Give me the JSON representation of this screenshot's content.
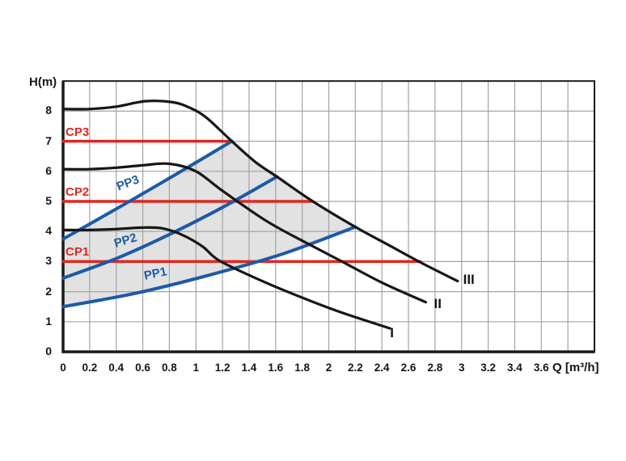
{
  "page": {
    "background": "#ffffff"
  },
  "chart_data": {
    "type": "line",
    "title": "",
    "xlabel": "Q [m³/h]",
    "ylabel": "H(m)",
    "xlim": [
      0,
      4.0
    ],
    "ylim": [
      0,
      9
    ],
    "grid": {
      "on": true,
      "x_step": 0.2,
      "y_step": 1
    },
    "legend_position": "none",
    "x_ticks": [
      {
        "value": 0,
        "label": "0"
      },
      {
        "value": 0.2,
        "label": "0.2"
      },
      {
        "value": 0.4,
        "label": "0.4"
      },
      {
        "value": 0.6,
        "label": "0.6"
      },
      {
        "value": 0.8,
        "label": "0.8"
      },
      {
        "value": 1,
        "label": "1"
      },
      {
        "value": 1.2,
        "label": "1.2"
      },
      {
        "value": 1.4,
        "label": "1.4"
      },
      {
        "value": 1.6,
        "label": "1.6"
      },
      {
        "value": 1.8,
        "label": "1.8"
      },
      {
        "value": 2,
        "label": "2"
      },
      {
        "value": 2.2,
        "label": "2.2"
      },
      {
        "value": 2.4,
        "label": "2.4"
      },
      {
        "value": 2.6,
        "label": "2.6"
      },
      {
        "value": 2.8,
        "label": "2.8"
      },
      {
        "value": 3,
        "label": "3"
      },
      {
        "value": 3.2,
        "label": "3.2"
      },
      {
        "value": 3.4,
        "label": "3.4"
      },
      {
        "value": 3.6,
        "label": "3.6"
      }
    ],
    "y_ticks": [
      {
        "value": 0,
        "label": "0"
      },
      {
        "value": 1,
        "label": "1"
      },
      {
        "value": 2,
        "label": "2"
      },
      {
        "value": 3,
        "label": "3"
      },
      {
        "value": 4,
        "label": "4"
      },
      {
        "value": 5,
        "label": "5"
      },
      {
        "value": 6,
        "label": "6"
      },
      {
        "value": 7,
        "label": "7"
      },
      {
        "value": 8,
        "label": "8"
      }
    ],
    "speed_curves": [
      {
        "name": "I",
        "label": "I",
        "color": "#161616",
        "points": [
          [
            0,
            4.05
          ],
          [
            0.2,
            4.05
          ],
          [
            0.4,
            4.08
          ],
          [
            0.6,
            4.13
          ],
          [
            0.75,
            4.1
          ],
          [
            0.9,
            3.88
          ],
          [
            1.05,
            3.5
          ],
          [
            1.18,
            3.02
          ],
          [
            1.5,
            2.35
          ],
          [
            1.8,
            1.8
          ],
          [
            2.1,
            1.3
          ],
          [
            2.46,
            0.78
          ]
        ],
        "label_pos": [
          2.51,
          0.62
        ]
      },
      {
        "name": "II",
        "label": "II",
        "color": "#161616",
        "points": [
          [
            0,
            6.07
          ],
          [
            0.2,
            6.07
          ],
          [
            0.4,
            6.12
          ],
          [
            0.6,
            6.2
          ],
          [
            0.8,
            6.25
          ],
          [
            1.0,
            6.0
          ],
          [
            1.2,
            5.35
          ],
          [
            1.53,
            4.35
          ],
          [
            1.84,
            3.6
          ],
          [
            2.1,
            3.0
          ],
          [
            2.4,
            2.3
          ],
          [
            2.73,
            1.65
          ]
        ],
        "label_pos": [
          2.84,
          1.58
        ]
      },
      {
        "name": "III",
        "label": "III",
        "color": "#161616",
        "points": [
          [
            0,
            8.07
          ],
          [
            0.2,
            8.07
          ],
          [
            0.4,
            8.15
          ],
          [
            0.62,
            8.33
          ],
          [
            0.82,
            8.3
          ],
          [
            0.95,
            8.12
          ],
          [
            1.08,
            7.78
          ],
          [
            1.27,
            7.0
          ],
          [
            1.45,
            6.3
          ],
          [
            1.61,
            5.82
          ],
          [
            1.88,
            5.0
          ],
          [
            2.2,
            4.15
          ],
          [
            2.45,
            3.55
          ],
          [
            2.7,
            2.95
          ],
          [
            2.97,
            2.35
          ]
        ],
        "label_pos": [
          3.06,
          2.4
        ]
      }
    ],
    "constant_pressure_lines": [
      {
        "name": "CP1",
        "label": "CP1",
        "color": "#e3251e",
        "h": 3,
        "q_start": 0,
        "q_end": 2.69
      },
      {
        "name": "CP2",
        "label": "CP2",
        "color": "#e3251e",
        "h": 5,
        "q_start": 0,
        "q_end": 1.88
      },
      {
        "name": "CP3",
        "label": "CP3",
        "color": "#e3251e",
        "h": 7,
        "q_start": 0,
        "q_end": 1.27
      }
    ],
    "proportional_pressure_curves": [
      {
        "name": "PP1",
        "label": "PP1",
        "color": "#1c5aa6",
        "points": [
          [
            0,
            1.5
          ],
          [
            0.55,
            1.95
          ],
          [
            1.1,
            2.55
          ],
          [
            1.65,
            3.25
          ],
          [
            2.2,
            4.15
          ]
        ],
        "label_pos": [
          0.71,
          2.56
        ],
        "label_angle": -12
      },
      {
        "name": "PP2",
        "label": "PP2",
        "color": "#1c5aa6",
        "points": [
          [
            0,
            2.45
          ],
          [
            0.4,
            3.1
          ],
          [
            0.8,
            3.9
          ],
          [
            1.2,
            4.8
          ],
          [
            1.61,
            5.82
          ]
        ],
        "label_pos": [
          0.49,
          3.66
        ],
        "label_angle": -17
      },
      {
        "name": "PP3",
        "label": "PP3",
        "color": "#1c5aa6",
        "points": [
          [
            0,
            3.75
          ],
          [
            0.42,
            4.8
          ],
          [
            0.85,
            5.9
          ],
          [
            1.27,
            7.0
          ]
        ],
        "label_pos": [
          0.505,
          5.56
        ],
        "label_angle": -21
      }
    ],
    "operating_region": {
      "fill": "#e2e2e2",
      "points": [
        [
          0,
          1.5
        ],
        [
          0.55,
          1.95
        ],
        [
          1.1,
          2.55
        ],
        [
          1.65,
          3.25
        ],
        [
          2.2,
          4.15
        ],
        [
          1.88,
          5.0
        ],
        [
          1.61,
          5.82
        ],
        [
          1.45,
          6.3
        ],
        [
          1.27,
          7.0
        ],
        [
          0.85,
          5.9
        ],
        [
          0.42,
          4.8
        ],
        [
          0,
          3.75
        ]
      ]
    },
    "colors": {
      "curve_black": "#161616",
      "cp_red": "#e3251e",
      "pp_blue": "#1c5aa6",
      "grid": "#a3a3a3",
      "frame": "#1a1a1a",
      "region_fill": "#e2e2e2"
    }
  }
}
